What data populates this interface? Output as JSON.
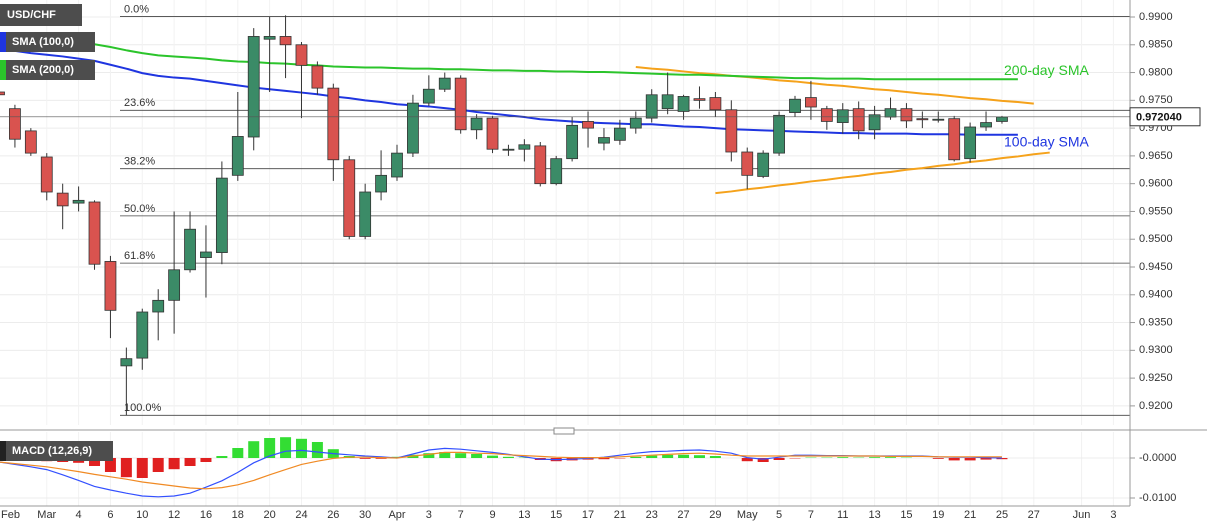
{
  "chart_data": {
    "type": "candlestick",
    "title": "USD/CHF",
    "grid": true,
    "categories": [
      "Feb",
      null,
      null,
      "Mar",
      null,
      "4",
      null,
      "6",
      null,
      "10",
      null,
      "12",
      null,
      "16",
      null,
      "18",
      null,
      "20",
      null,
      "24",
      null,
      "26",
      null,
      "30",
      null,
      "Apr",
      null,
      "3",
      null,
      "7",
      null,
      "9",
      null,
      "13",
      null,
      "15",
      null,
      "17",
      null,
      "21",
      null,
      "23",
      null,
      "27",
      null,
      "29",
      null,
      "May",
      null,
      "5",
      null,
      "7",
      null,
      "11",
      null,
      "13",
      null,
      "15",
      null,
      "19",
      null,
      "21",
      null,
      "25",
      null,
      "27",
      null,
      null,
      "Jun",
      null,
      "3"
    ],
    "ohlc": {
      "up_color": "#3b8b67",
      "down_color": "#d9534f",
      "open": [
        0.9765,
        0.9735,
        0.9695,
        0.9648,
        0.9583,
        0.9565,
        0.9567,
        0.946,
        0.9272,
        0.9286,
        0.9369,
        0.939,
        0.9445,
        0.9467,
        0.9476,
        0.9615,
        0.9684,
        0.986,
        0.9865,
        0.985,
        0.9812,
        0.9772,
        0.9643,
        0.9505,
        0.9585,
        0.9612,
        0.9655,
        0.9745,
        0.977,
        0.979,
        0.9697,
        0.9718,
        0.9662,
        0.9662,
        0.9668,
        0.96,
        0.9645,
        0.9712,
        0.9673,
        0.9678,
        0.97,
        0.9718,
        0.9735,
        0.973,
        0.9753,
        0.9755,
        0.9733,
        0.9657,
        0.9613,
        0.9655,
        0.9728,
        0.9755,
        0.9735,
        0.971,
        0.9735,
        0.9697,
        0.972,
        0.9735,
        0.9717,
        0.9715,
        0.9717,
        0.9645,
        0.9702,
        0.9712,
        null,
        null,
        null,
        null,
        null,
        null,
        null
      ],
      "high": [
        0.9775,
        0.9742,
        0.97,
        0.9655,
        0.96,
        0.9595,
        0.957,
        0.947,
        0.9305,
        0.9375,
        0.941,
        0.955,
        0.955,
        0.9525,
        0.964,
        0.9765,
        0.988,
        0.99,
        0.9903,
        0.9855,
        0.982,
        0.978,
        0.965,
        0.96,
        0.966,
        0.967,
        0.976,
        0.9795,
        0.98,
        0.9795,
        0.9725,
        0.9722,
        0.967,
        0.968,
        0.9675,
        0.965,
        0.972,
        0.973,
        0.97,
        0.9715,
        0.973,
        0.977,
        0.98,
        0.976,
        0.9775,
        0.9765,
        0.975,
        0.9665,
        0.966,
        0.973,
        0.9758,
        0.9785,
        0.974,
        0.9745,
        0.9748,
        0.974,
        0.9755,
        0.9745,
        0.973,
        0.973,
        0.9722,
        0.971,
        0.973,
        0.9722,
        null,
        null,
        null,
        null,
        null,
        null,
        null
      ],
      "low": [
        0.974,
        0.9665,
        0.965,
        0.957,
        0.9518,
        0.955,
        0.9445,
        0.9322,
        0.9183,
        0.9265,
        0.9318,
        0.933,
        0.944,
        0.9395,
        0.9455,
        0.9605,
        0.966,
        0.9765,
        0.979,
        0.9718,
        0.976,
        0.9605,
        0.95,
        0.95,
        0.957,
        0.9605,
        0.9648,
        0.974,
        0.9765,
        0.969,
        0.968,
        0.9655,
        0.965,
        0.964,
        0.9595,
        0.9597,
        0.964,
        0.9665,
        0.966,
        0.967,
        0.969,
        0.971,
        0.9725,
        0.9715,
        0.9735,
        0.972,
        0.964,
        0.959,
        0.961,
        0.965,
        0.972,
        0.9715,
        0.9697,
        0.969,
        0.968,
        0.968,
        0.9715,
        0.97,
        0.97,
        0.971,
        0.964,
        0.9638,
        0.9695,
        0.9708,
        null,
        null,
        null,
        null,
        null,
        null,
        null
      ],
      "close": [
        0.976,
        0.968,
        0.9655,
        0.9585,
        0.956,
        0.957,
        0.9455,
        0.9372,
        0.9285,
        0.9369,
        0.939,
        0.9445,
        0.9518,
        0.9477,
        0.961,
        0.9685,
        0.9865,
        0.9865,
        0.985,
        0.9813,
        0.9772,
        0.9643,
        0.9505,
        0.9585,
        0.9615,
        0.9655,
        0.9745,
        0.977,
        0.979,
        0.9697,
        0.9718,
        0.9662,
        0.9662,
        0.967,
        0.96,
        0.9645,
        0.9705,
        0.97,
        0.9683,
        0.97,
        0.9718,
        0.976,
        0.976,
        0.9757,
        0.975,
        0.9733,
        0.9657,
        0.9615,
        0.9655,
        0.9723,
        0.9752,
        0.9738,
        0.9712,
        0.9733,
        0.9695,
        0.9724,
        0.9735,
        0.9713,
        0.9715,
        0.9716,
        0.9643,
        0.9702,
        0.971,
        0.972,
        null,
        null,
        null,
        null,
        null,
        null,
        null
      ]
    },
    "overlays": [
      {
        "name": "SMA (100,0)",
        "annotation": "100-day SMA",
        "color": "#1f35e0",
        "values": [
          0.9842,
          0.9839,
          0.9835,
          0.9832,
          0.9829,
          0.9825,
          0.9821,
          0.9814,
          0.9807,
          0.9799,
          0.9794,
          0.9791,
          0.9789,
          0.9785,
          0.9781,
          0.9777,
          0.9773,
          0.977,
          0.9767,
          0.9764,
          0.9761,
          0.9757,
          0.9754,
          0.975,
          0.9747,
          0.9743,
          0.9741,
          0.9739,
          0.9736,
          0.9733,
          0.9729,
          0.9726,
          0.9723,
          0.972,
          0.9716,
          0.9714,
          0.9712,
          0.971,
          0.9709,
          0.9708,
          0.9707,
          0.9707,
          0.9705,
          0.9703,
          0.9702,
          0.97,
          0.9698,
          0.9697,
          0.9696,
          0.9695,
          0.9694,
          0.9693,
          0.9692,
          0.9691,
          0.9691,
          0.969,
          0.969,
          0.969,
          0.9689,
          0.9689,
          0.9689,
          0.9688,
          0.9688,
          0.9688,
          0.9688,
          null,
          null,
          null,
          null,
          null,
          null
        ]
      },
      {
        "name": "SMA (200,0)",
        "annotation": "200-day SMA",
        "color": "#2bc42b",
        "values": [
          0.9864,
          0.9862,
          0.986,
          0.9857,
          0.9855,
          0.9853,
          0.9851,
          0.9846,
          0.984,
          0.9835,
          0.9831,
          0.9829,
          0.9827,
          0.9825,
          0.9822,
          0.982,
          0.9819,
          0.9817,
          0.9816,
          0.9814,
          0.9813,
          0.9811,
          0.981,
          0.9809,
          0.9809,
          0.9808,
          0.9807,
          0.9807,
          0.9806,
          0.9806,
          0.9805,
          0.9804,
          0.9804,
          0.9803,
          0.9803,
          0.9802,
          0.9802,
          0.9801,
          0.9801,
          0.98,
          0.9799,
          0.9798,
          0.9797,
          0.9796,
          0.9796,
          0.9795,
          0.9794,
          0.9793,
          0.9792,
          0.9791,
          0.979,
          0.979,
          0.9789,
          0.9789,
          0.9789,
          0.9788,
          0.9788,
          0.9788,
          0.9788,
          0.9788,
          0.9788,
          0.9788,
          0.9788,
          0.9788,
          0.9788,
          null,
          null,
          null,
          null,
          null,
          null
        ]
      }
    ],
    "trendlines": [
      {
        "color": "#f5a21b",
        "values": [
          null,
          null,
          null,
          null,
          null,
          null,
          null,
          null,
          null,
          null,
          null,
          null,
          null,
          null,
          null,
          null,
          null,
          null,
          null,
          null,
          null,
          null,
          null,
          null,
          null,
          null,
          null,
          null,
          null,
          null,
          null,
          null,
          null,
          null,
          null,
          null,
          null,
          null,
          null,
          null,
          0.981,
          0.9807,
          0.9805,
          0.9802,
          0.9799,
          0.9797,
          0.9794,
          0.9792,
          0.9789,
          0.9786,
          0.9784,
          0.9781,
          0.9778,
          0.9776,
          0.9773,
          0.977,
          0.9768,
          0.9765,
          0.9762,
          0.976,
          0.9757,
          0.9754,
          0.9752,
          0.9749,
          0.9747,
          0.9744,
          null,
          null,
          null,
          null,
          null
        ]
      },
      {
        "color": "#f5a21b",
        "values": [
          null,
          null,
          null,
          null,
          null,
          null,
          null,
          null,
          null,
          null,
          null,
          null,
          null,
          null,
          null,
          null,
          null,
          null,
          null,
          null,
          null,
          null,
          null,
          null,
          null,
          null,
          null,
          null,
          null,
          null,
          null,
          null,
          null,
          null,
          null,
          null,
          null,
          null,
          null,
          null,
          null,
          null,
          null,
          null,
          null,
          0.9583,
          0.9586,
          0.959,
          0.9593,
          0.9597,
          0.96,
          0.9604,
          0.9607,
          0.9611,
          0.9614,
          0.9618,
          0.9621,
          0.9625,
          0.9628,
          0.9632,
          0.9635,
          0.9639,
          0.9642,
          0.9646,
          0.9649,
          0.9653,
          0.9656,
          null,
          null,
          null,
          null
        ]
      }
    ],
    "fib_levels": [
      {
        "value": 0.9901,
        "label": "0.0%"
      },
      {
        "value": 0.9732,
        "label": "23.6%"
      },
      {
        "value": 0.9627,
        "label": "38.2%"
      },
      {
        "value": 0.9542,
        "label": "50.0%"
      },
      {
        "value": 0.9457,
        "label": "61.8%"
      },
      {
        "value": 0.9183,
        "label": "100.0%"
      }
    ],
    "last_price": {
      "value": 0.97204,
      "label": "0.972040"
    },
    "ylim": [
      0.91656,
      0.99306
    ],
    "yticks": [
      {
        "value": 0.99,
        "label": "0.9900"
      },
      {
        "value": 0.985,
        "label": "0.9850"
      },
      {
        "value": 0.98,
        "label": "0.9800"
      },
      {
        "value": 0.975,
        "label": "0.9750"
      },
      {
        "value": 0.97,
        "label": "0.9700"
      },
      {
        "value": 0.965,
        "label": "0.9650"
      },
      {
        "value": 0.96,
        "label": "0.9600"
      },
      {
        "value": 0.955,
        "label": "0.9550"
      },
      {
        "value": 0.95,
        "label": "0.9500"
      },
      {
        "value": 0.945,
        "label": "0.9450"
      },
      {
        "value": 0.94,
        "label": "0.9400"
      },
      {
        "value": 0.935,
        "label": "0.9350"
      },
      {
        "value": 0.93,
        "label": "0.9300"
      },
      {
        "value": 0.925,
        "label": "0.9250"
      },
      {
        "value": 0.92,
        "label": "0.9200"
      }
    ],
    "macd": {
      "title": "MACD (12,26,9)",
      "ylim": [
        -0.013,
        0.0065
      ],
      "yticks": [
        {
          "value": 0,
          "label": "-0.0000"
        },
        {
          "value": -0.01,
          "label": "-0.0100"
        }
      ],
      "histogram": {
        "up_color": "#33dd33",
        "down_color": "#e02020",
        "values": [
          -0.0001,
          -0.0002,
          -0.0005,
          -0.0008,
          -0.001,
          -0.0012,
          -0.002,
          -0.0035,
          -0.0048,
          -0.005,
          -0.0035,
          -0.0028,
          -0.002,
          -0.001,
          0.0005,
          0.0025,
          0.0042,
          0.005,
          0.0052,
          0.0048,
          0.004,
          0.0022,
          0.0005,
          -0.0002,
          -0.0002,
          0.0003,
          0.0008,
          0.0012,
          0.0015,
          0.0012,
          0.001,
          0.0006,
          0.0003,
          0.0001,
          -0.0005,
          -0.0008,
          -0.0006,
          -0.0004,
          -0.0003,
          -0.0001,
          0.0003,
          0.0006,
          0.0008,
          0.0008,
          0.0007,
          0.0005,
          0.0,
          -0.0008,
          -0.001,
          -0.0005,
          -0.0001,
          0.0001,
          0.0001,
          0.0002,
          0.0001,
          0.0002,
          0.0002,
          0.0001,
          0.0,
          -0.0002,
          -0.0006,
          -0.0006,
          -0.0004,
          -0.0003,
          null,
          null,
          null,
          null,
          null,
          null,
          null
        ]
      },
      "lines": [
        {
          "color": "#3350ff",
          "values": [
            -0.001,
            -0.0016,
            -0.0022,
            -0.0029,
            -0.0042,
            -0.0056,
            -0.0071,
            -0.008,
            -0.0088,
            -0.0095,
            -0.0097,
            -0.0095,
            -0.0088,
            -0.0073,
            -0.0057,
            -0.0036,
            -0.0012,
            0.0005,
            0.0017,
            0.0019,
            0.0015,
            0.0011,
            0.0008,
            0.0005,
            0.0003,
            0.0,
            0.001,
            0.002,
            0.0024,
            0.0022,
            0.0018,
            0.0014,
            0.0009,
            0.0003,
            -0.0003,
            -0.0004,
            -0.0003,
            -0.0001,
            0.0002,
            0.0007,
            0.0012,
            0.0016,
            0.0017,
            0.0019,
            0.002,
            0.0017,
            0.0012,
            0.0001,
            -0.0003,
            0.0002,
            0.0007,
            0.0007,
            0.0006,
            0.0006,
            0.0005,
            0.0005,
            0.0005,
            0.0005,
            0.0005,
            0.0003,
            0.0002,
            0.0002,
            0.0001,
            0.0,
            null,
            null,
            null,
            null,
            null,
            null,
            null
          ]
        },
        {
          "color": "#f08a24",
          "values": [
            -0.001,
            -0.0014,
            -0.0018,
            -0.0022,
            -0.0028,
            -0.0034,
            -0.0041,
            -0.0047,
            -0.0053,
            -0.006,
            -0.0065,
            -0.007,
            -0.0075,
            -0.0077,
            -0.0074,
            -0.0067,
            -0.0056,
            -0.0042,
            -0.0029,
            -0.0016,
            -0.0008,
            -0.0001,
            0.0002,
            0.0002,
            0.0001,
            0.0,
            0.0005,
            0.0009,
            0.0014,
            0.0014,
            0.0012,
            0.0011,
            0.0008,
            0.0006,
            0.0004,
            0.0002,
            0.0001,
            0.0001,
            0.0001,
            0.0003,
            0.0005,
            0.0007,
            0.0009,
            0.0011,
            0.0012,
            0.001,
            0.0007,
            0.0005,
            0.0005,
            0.0005,
            0.0005,
            0.0005,
            0.0005,
            0.0005,
            0.0005,
            0.0005,
            0.0004,
            0.0004,
            0.0004,
            0.0003,
            0.0003,
            0.0003,
            0.0003,
            0.0003,
            null,
            null,
            null,
            null,
            null,
            null,
            null
          ]
        }
      ]
    }
  }
}
